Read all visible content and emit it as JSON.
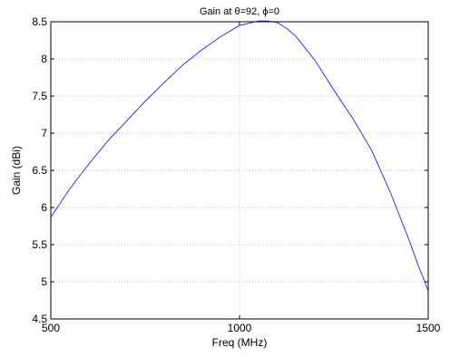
{
  "chart_data": {
    "type": "line",
    "title": "Gain at θ=92, ϕ=0",
    "xlabel": "Freq (MHz)",
    "ylabel": "Gain (dBi)",
    "xlim": [
      500,
      1500
    ],
    "ylim": [
      4.5,
      8.5
    ],
    "x_ticks": [
      500,
      1000,
      1500
    ],
    "y_ticks": [
      4.5,
      5,
      5.5,
      6,
      6.5,
      7,
      7.5,
      8,
      8.5
    ],
    "x_tick_labels": [
      "500",
      "1000",
      "1500"
    ],
    "y_tick_labels": [
      "4.5",
      "5",
      "5.5",
      "6",
      "6.5",
      "7",
      "7.5",
      "8",
      "8.5"
    ],
    "grid": true,
    "legend": "none",
    "series": [
      {
        "color": "#3333ff",
        "x": [
          500,
          550,
          600,
          650,
          700,
          750,
          800,
          850,
          900,
          950,
          1000,
          1025,
          1050,
          1075,
          1100,
          1125,
          1150,
          1200,
          1250,
          1300,
          1350,
          1400,
          1450,
          1475,
          1500
        ],
        "y": [
          5.87,
          6.25,
          6.58,
          6.89,
          7.16,
          7.43,
          7.68,
          7.92,
          8.12,
          8.3,
          8.45,
          8.48,
          8.51,
          8.51,
          8.49,
          8.41,
          8.3,
          7.98,
          7.58,
          7.2,
          6.77,
          6.2,
          5.55,
          5.2,
          4.88
        ]
      }
    ]
  }
}
